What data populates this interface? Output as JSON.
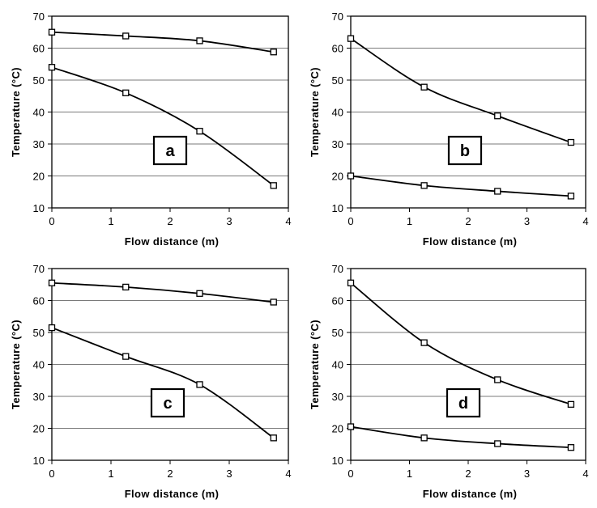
{
  "chart_data": [
    {
      "type": "line",
      "label": "a",
      "xlabel": "Flow distance (m)",
      "ylabel": "Temperature (°C)",
      "xlim": [
        0,
        4
      ],
      "ylim": [
        10,
        70
      ],
      "xticks": [
        0,
        1,
        2,
        3,
        4
      ],
      "yticks": [
        10,
        20,
        30,
        40,
        50,
        60,
        70
      ],
      "grid": "horizontal",
      "series": [
        {
          "points": [
            [
              0,
              65
            ],
            [
              1.25,
              63.8
            ],
            [
              2.5,
              62.3
            ],
            [
              3.75,
              58.8
            ]
          ]
        },
        {
          "points": [
            [
              0,
              54
            ],
            [
              1.25,
              46
            ],
            [
              2.5,
              34
            ],
            [
              3.75,
              17
            ]
          ]
        }
      ]
    },
    {
      "type": "line",
      "label": "b",
      "xlabel": "Flow distance (m)",
      "ylabel": "Temperature (°C)",
      "xlim": [
        0,
        4
      ],
      "ylim": [
        10,
        70
      ],
      "xticks": [
        0,
        1,
        2,
        3,
        4
      ],
      "yticks": [
        10,
        20,
        30,
        40,
        50,
        60,
        70
      ],
      "grid": "horizontal",
      "series": [
        {
          "points": [
            [
              0,
              63
            ],
            [
              1.25,
              47.8
            ],
            [
              2.5,
              38.8
            ],
            [
              3.75,
              30.5
            ]
          ]
        },
        {
          "points": [
            [
              0,
              20
            ],
            [
              1.25,
              17
            ],
            [
              2.5,
              15.2
            ],
            [
              3.75,
              13.7
            ]
          ]
        }
      ]
    },
    {
      "type": "line",
      "label": "c",
      "xlabel": "Flow distance (m)",
      "ylabel": "Temperature (°C)",
      "xlim": [
        0,
        4
      ],
      "ylim": [
        10,
        70
      ],
      "xticks": [
        0,
        1,
        2,
        3,
        4
      ],
      "yticks": [
        10,
        20,
        30,
        40,
        50,
        60,
        70
      ],
      "grid": "horizontal",
      "series": [
        {
          "points": [
            [
              0,
              65.5
            ],
            [
              1.25,
              64.2
            ],
            [
              2.5,
              62.2
            ],
            [
              3.75,
              59.5
            ]
          ]
        },
        {
          "points": [
            [
              0,
              51.5
            ],
            [
              1.25,
              42.5
            ],
            [
              2.5,
              33.7
            ],
            [
              3.75,
              17
            ]
          ]
        }
      ]
    },
    {
      "type": "line",
      "label": "d",
      "xlabel": "Flow distance (m)",
      "ylabel": "Temperature (°C)",
      "xlim": [
        0,
        4
      ],
      "ylim": [
        10,
        70
      ],
      "xticks": [
        0,
        1,
        2,
        3,
        4
      ],
      "yticks": [
        10,
        20,
        30,
        40,
        50,
        60,
        70
      ],
      "grid": "horizontal",
      "series": [
        {
          "points": [
            [
              0,
              65.5
            ],
            [
              1.25,
              46.8
            ],
            [
              2.5,
              35.2
            ],
            [
              3.75,
              27.5
            ]
          ]
        },
        {
          "points": [
            [
              0,
              20.5
            ],
            [
              1.25,
              17
            ],
            [
              2.5,
              15.2
            ],
            [
              3.75,
              14
            ]
          ]
        }
      ]
    }
  ]
}
